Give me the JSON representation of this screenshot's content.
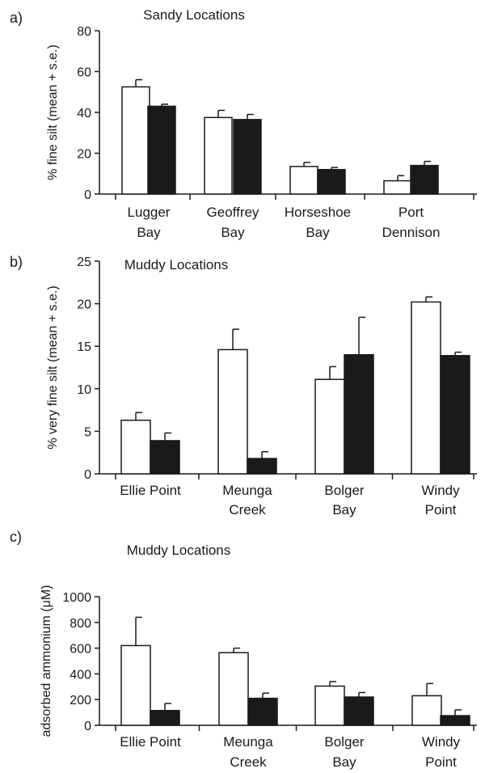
{
  "chart_data": [
    {
      "type": "bar",
      "panel_label": "a)",
      "title": "Sandy Locations",
      "ylabel": "% fine silt (mean + s.e.)",
      "ylim": [
        0,
        80
      ],
      "yticks": [
        "0",
        "20",
        "40",
        "60",
        "80"
      ],
      "categories": [
        [
          "Lugger",
          "Bay"
        ],
        [
          "Geoffrey",
          "Bay"
        ],
        [
          "Horseshoe",
          "Bay"
        ],
        [
          "Port",
          "Dennison"
        ]
      ],
      "series": [
        {
          "color": "#ffffff",
          "values": [
            52.5,
            37.5,
            13.5,
            6.5
          ],
          "errors": [
            3.5,
            3.5,
            2,
            2.5
          ]
        },
        {
          "color": "#1a1a1a",
          "values": [
            43,
            36.5,
            12,
            14
          ],
          "errors": [
            1,
            2.5,
            1,
            2
          ]
        }
      ]
    },
    {
      "type": "bar",
      "panel_label": "b)",
      "title": "Muddy Locations",
      "ylabel": "% very fine silt (mean + s.e.)",
      "ylim": [
        0,
        25
      ],
      "yticks": [
        "0",
        "5",
        "10",
        "15",
        "20",
        "25"
      ],
      "categories": [
        [
          "Ellie Point"
        ],
        [
          "Meunga",
          "Creek"
        ],
        [
          "Bolger",
          "Bay"
        ],
        [
          "Windy",
          "Point"
        ]
      ],
      "series": [
        {
          "color": "#ffffff",
          "values": [
            6.3,
            14.6,
            11.1,
            20.2
          ],
          "errors": [
            0.9,
            2.4,
            1.5,
            0.6
          ]
        },
        {
          "color": "#1a1a1a",
          "values": [
            3.9,
            1.8,
            14.0,
            13.9
          ],
          "errors": [
            0.9,
            0.8,
            4.4,
            0.4
          ]
        }
      ]
    },
    {
      "type": "bar",
      "panel_label": "c)",
      "title": "Muddy Locations",
      "ylabel": "adsorbed ammonium (μM)",
      "ylim": [
        0,
        1000
      ],
      "yticks": [
        "0",
        "200",
        "400",
        "600",
        "800",
        "1000"
      ],
      "categories": [
        [
          "Ellie Point"
        ],
        [
          "Meunga",
          "Creek"
        ],
        [
          "Bolger",
          "Bay"
        ],
        [
          "Windy",
          "Point"
        ]
      ],
      "series": [
        {
          "color": "#ffffff",
          "values": [
            620,
            565,
            305,
            230
          ],
          "errors": [
            220,
            35,
            35,
            95
          ]
        },
        {
          "color": "#1a1a1a",
          "values": [
            115,
            210,
            220,
            75
          ],
          "errors": [
            55,
            40,
            35,
            45
          ]
        }
      ]
    }
  ]
}
